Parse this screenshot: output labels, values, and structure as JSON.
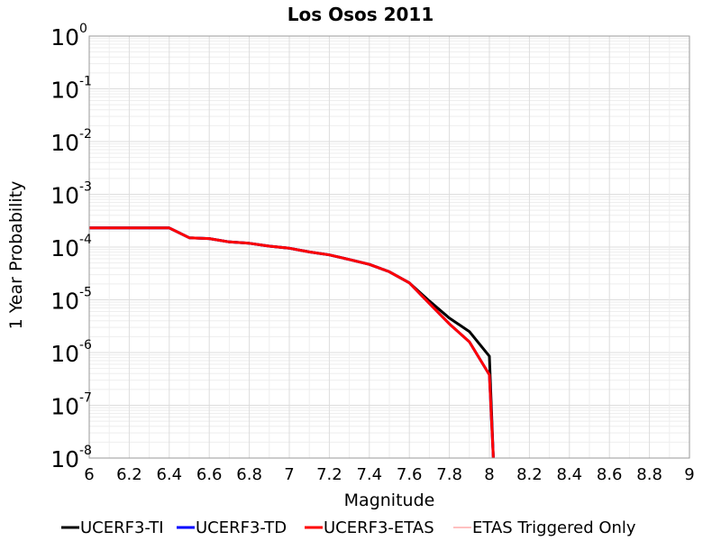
{
  "chart_data": {
    "type": "line",
    "title": "Los Osos 2011",
    "xlabel": "Magnitude",
    "ylabel": "1 Year Probability",
    "xlim": [
      6,
      9
    ],
    "ylim": [
      1e-08,
      1
    ],
    "yscale": "log",
    "grid": true,
    "legend_position": "bottom",
    "x_ticks": [
      "6",
      "6.2",
      "6.4",
      "6.6",
      "6.8",
      "7",
      "7.2",
      "7.4",
      "7.6",
      "7.8",
      "8",
      "8.2",
      "8.4",
      "8.6",
      "8.8",
      "9"
    ],
    "y_ticks": [
      {
        "base": "10",
        "exp": "0"
      },
      {
        "base": "10",
        "exp": "-1"
      },
      {
        "base": "10",
        "exp": "-2"
      },
      {
        "base": "10",
        "exp": "-3"
      },
      {
        "base": "10",
        "exp": "-4"
      },
      {
        "base": "10",
        "exp": "-5"
      },
      {
        "base": "10",
        "exp": "-6"
      },
      {
        "base": "10",
        "exp": "-7"
      },
      {
        "base": "10",
        "exp": "-8"
      }
    ],
    "series": [
      {
        "name": "UCERF3-TI",
        "color": "#000000",
        "x": [
          6.0,
          6.1,
          6.2,
          6.3,
          6.4,
          6.5,
          6.6,
          6.7,
          6.8,
          6.9,
          7.0,
          7.1,
          7.2,
          7.3,
          7.4,
          7.5,
          7.6,
          7.7,
          7.8,
          7.9,
          8.0,
          8.02
        ],
        "y": [
          0.00023,
          0.00023,
          0.00023,
          0.00023,
          0.00023,
          0.00015,
          0.000145,
          0.000125,
          0.000118,
          0.000104,
          9.5e-05,
          8.1e-05,
          7.1e-05,
          5.8e-05,
          4.7e-05,
          3.4e-05,
          2.1e-05,
          9.5e-06,
          4.5e-06,
          2.5e-06,
          8.5e-07,
          1e-08
        ]
      },
      {
        "name": "UCERF3-TD",
        "color": "#0000ff",
        "x": [
          6.0,
          6.1,
          6.2,
          6.3,
          6.4,
          6.5,
          6.6,
          6.7,
          6.8,
          6.9,
          7.0,
          7.1,
          7.2,
          7.3,
          7.4,
          7.5,
          7.6,
          7.7,
          7.8,
          7.9,
          8.0,
          8.02
        ],
        "y": [
          0.00023,
          0.00023,
          0.00023,
          0.00023,
          0.00023,
          0.00015,
          0.000145,
          0.000125,
          0.000118,
          0.000104,
          9.5e-05,
          8.1e-05,
          7.1e-05,
          5.8e-05,
          4.7e-05,
          3.4e-05,
          2.1e-05,
          8.5e-06,
          3.5e-06,
          1.6e-06,
          3.8e-07,
          1e-08
        ]
      },
      {
        "name": "UCERF3-ETAS",
        "color": "#ff0000",
        "x": [
          6.0,
          6.1,
          6.2,
          6.3,
          6.4,
          6.5,
          6.6,
          6.7,
          6.8,
          6.9,
          7.0,
          7.1,
          7.2,
          7.3,
          7.4,
          7.5,
          7.6,
          7.7,
          7.8,
          7.9,
          8.0,
          8.02
        ],
        "y": [
          0.00023,
          0.00023,
          0.00023,
          0.00023,
          0.00023,
          0.00015,
          0.000145,
          0.000125,
          0.000118,
          0.000104,
          9.5e-05,
          8.1e-05,
          7.1e-05,
          5.8e-05,
          4.7e-05,
          3.4e-05,
          2.1e-05,
          8.5e-06,
          3.5e-06,
          1.6e-06,
          3.8e-07,
          1e-08
        ]
      },
      {
        "name": "ETAS Triggered Only",
        "color": "#ff8080",
        "x": [],
        "y": []
      }
    ]
  }
}
